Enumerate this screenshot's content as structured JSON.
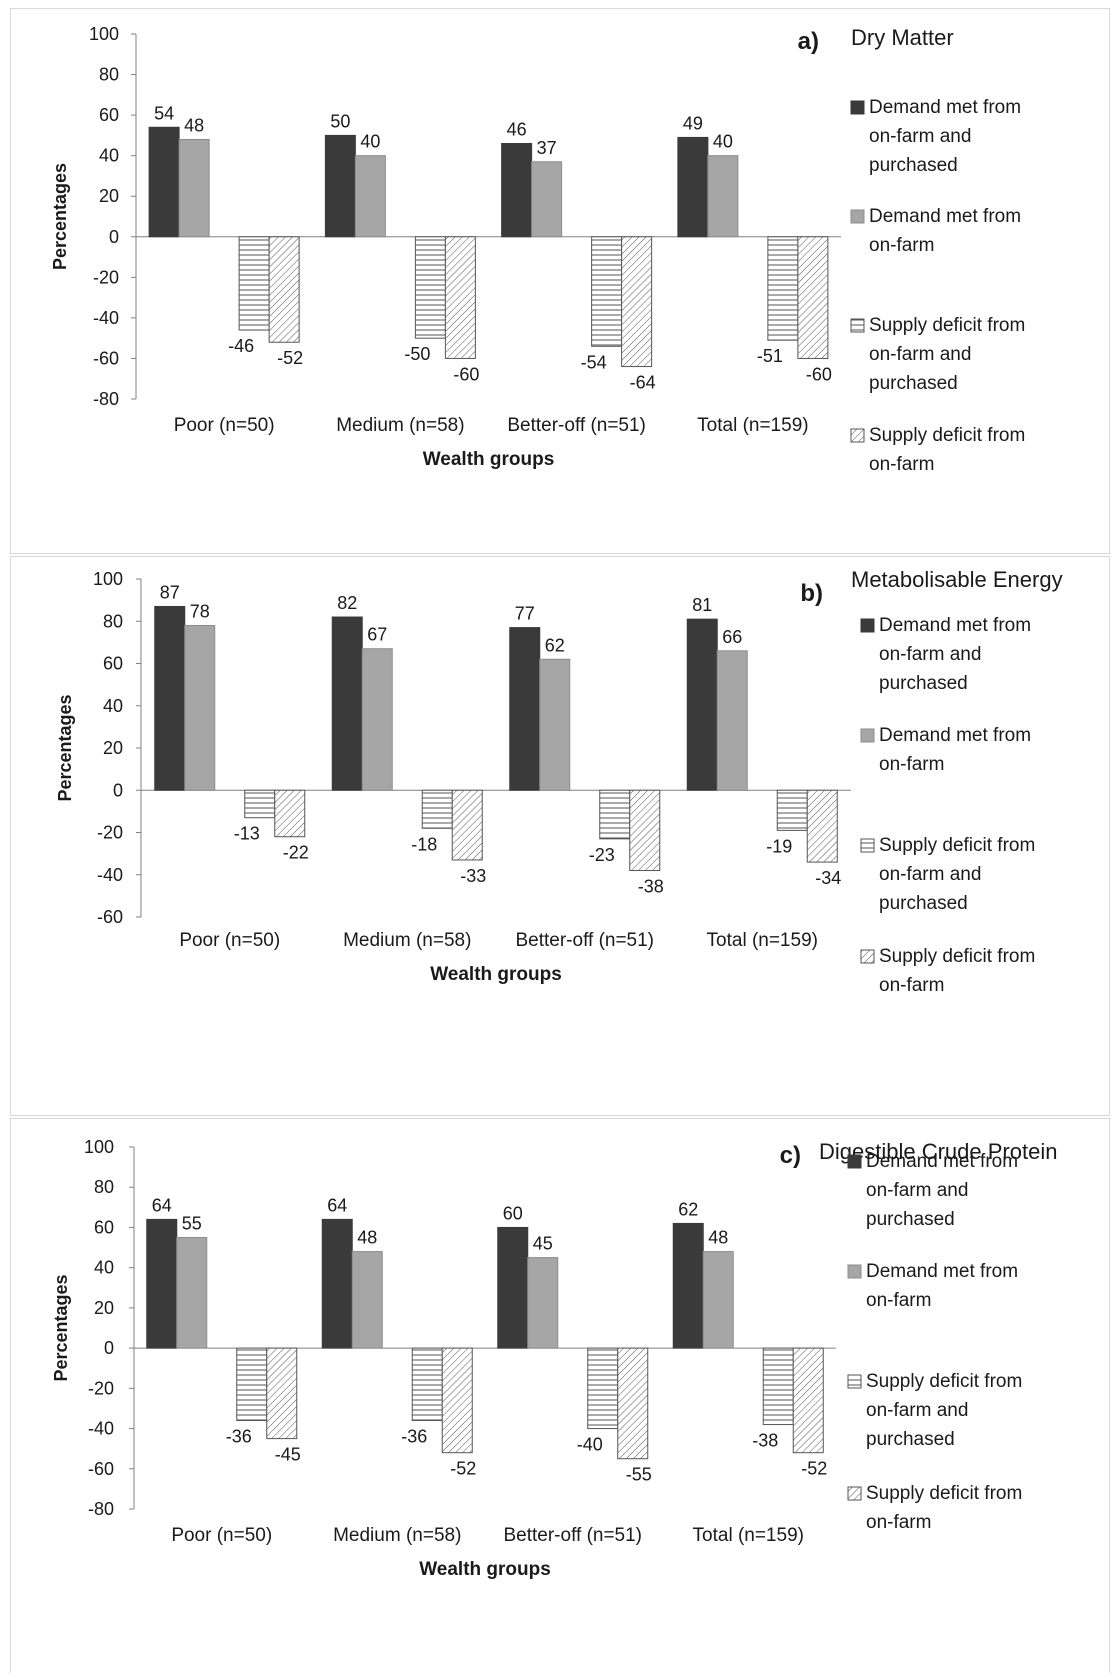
{
  "chart_data": [
    {
      "type": "bar",
      "panel_letter": "a)",
      "title": "Dry Matter",
      "xlabel": "Wealth groups",
      "ylabel": "Percentages",
      "ylim": [
        -80,
        100
      ],
      "yticks": [
        100,
        80,
        60,
        40,
        20,
        0,
        -20,
        -40,
        -60,
        -80
      ],
      "categories": [
        "Poor (n=50)",
        "Medium (n=58)",
        "Better-off (n=51)",
        "Total (n=159)"
      ],
      "series": [
        {
          "name": "Demand met from on-farm and purchased",
          "values": [
            54,
            50,
            46,
            49
          ]
        },
        {
          "name": "Demand met from on-farm",
          "values": [
            48,
            40,
            37,
            40
          ]
        },
        {
          "name": "Supply deficit from on-farm and purchased",
          "values": [
            -46,
            -50,
            -54,
            -51
          ]
        },
        {
          "name": "Supply deficit from on-farm",
          "values": [
            -52,
            -60,
            -64,
            -60
          ]
        }
      ],
      "legend_lines": [
        [
          "Demand met from",
          "on-farm and",
          "purchased"
        ],
        [
          "Demand met from",
          "on-farm"
        ],
        [
          "Supply deficit from",
          "on-farm and",
          "purchased"
        ],
        [
          "Supply deficit from",
          "on-farm"
        ]
      ],
      "legend_position": "right",
      "grid": false
    },
    {
      "type": "bar",
      "panel_letter": "b)",
      "title": "Metabolisable Energy",
      "xlabel": "Wealth groups",
      "ylabel": "Percentages",
      "ylim": [
        -60,
        100
      ],
      "yticks": [
        100,
        80,
        60,
        40,
        20,
        0,
        -20,
        -40,
        -60
      ],
      "categories": [
        "Poor (n=50)",
        "Medium (n=58)",
        "Better-off (n=51)",
        "Total (n=159)"
      ],
      "series": [
        {
          "name": "Demand met from on-farm and purchased",
          "values": [
            87,
            82,
            77,
            81
          ]
        },
        {
          "name": "Demand met from on-farm",
          "values": [
            78,
            67,
            62,
            66
          ]
        },
        {
          "name": "Supply deficit from on-farm and purchased",
          "values": [
            -13,
            -18,
            -23,
            -19
          ]
        },
        {
          "name": "Supply deficit from on-farm",
          "values": [
            -22,
            -33,
            -38,
            -34
          ]
        }
      ],
      "legend_lines": [
        [
          "Demand met from",
          "on-farm and",
          "purchased"
        ],
        [
          "Demand met from",
          "on-farm"
        ],
        [
          "Supply deficit from",
          "on-farm and",
          "purchased"
        ],
        [
          "Supply deficit from",
          "on-farm"
        ]
      ],
      "legend_position": "right",
      "grid": false
    },
    {
      "type": "bar",
      "panel_letter": "c)",
      "title": "Digestible Crude Protein",
      "xlabel": "Wealth groups",
      "ylabel": "Percentages",
      "ylim": [
        -80,
        100
      ],
      "yticks": [
        100,
        80,
        60,
        40,
        20,
        0,
        -20,
        -40,
        -60,
        -80
      ],
      "categories": [
        "Poor (n=50)",
        "Medium (n=58)",
        "Better-off (n=51)",
        "Total (n=159)"
      ],
      "series": [
        {
          "name": "Demand met from on-farm and purchased",
          "values": [
            64,
            64,
            60,
            62
          ]
        },
        {
          "name": "Demand met from on-farm",
          "values": [
            55,
            48,
            45,
            48
          ]
        },
        {
          "name": "Supply deficit from on-farm and purchased",
          "values": [
            -36,
            -36,
            -40,
            -38
          ]
        },
        {
          "name": "Supply deficit from on-farm",
          "values": [
            -45,
            -52,
            -55,
            -52
          ]
        }
      ],
      "legend_lines": [
        [
          "Demand met from",
          "on-farm and",
          "purchased"
        ],
        [
          "Demand met from",
          "on-farm"
        ],
        [
          "Supply deficit from",
          "on-farm and",
          "purchased"
        ],
        [
          "Supply deficit from",
          "on-farm"
        ]
      ],
      "legend_position": "right",
      "grid": false
    }
  ],
  "colors": {
    "demand_total": "#3a3a3a",
    "demand_onfarm": "#a6a6a6",
    "pattern_line": "#555555",
    "axis": "#808080",
    "text": "#1a1a1a"
  },
  "series_fills": [
    "solid-dark",
    "solid-gray",
    "horizontal-stripes",
    "diagonal-stripes"
  ]
}
